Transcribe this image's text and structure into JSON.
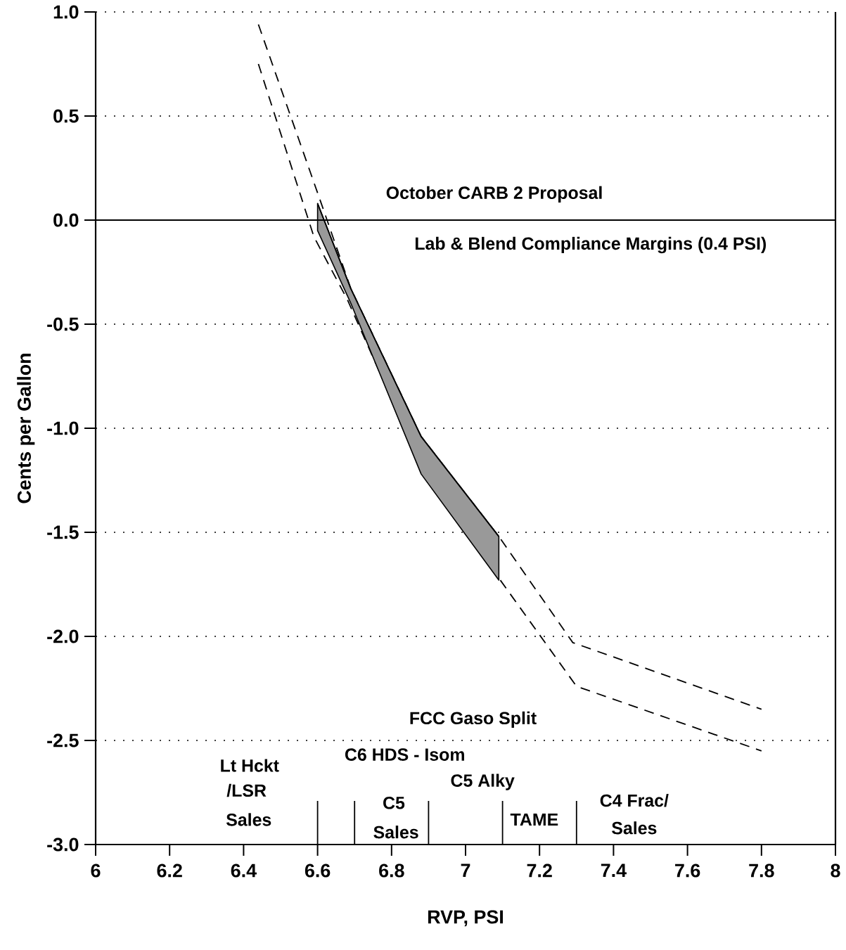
{
  "chart_data": {
    "type": "line",
    "xlabel": "RVP, PSI",
    "ylabel": "Cents per Gallon",
    "xlim": [
      6,
      8
    ],
    "xticks": [
      6,
      6.2,
      6.4,
      6.6,
      6.8,
      7,
      7.2,
      7.4,
      7.6,
      7.8,
      8
    ],
    "ylim": [
      -3,
      1
    ],
    "yticks": [
      {
        "value": 1,
        "label": "1.0"
      },
      {
        "value": 0.5,
        "label": "0.5"
      },
      {
        "value": 0,
        "label": "0.0"
      },
      {
        "value": -0.5,
        "label": "-0.5"
      },
      {
        "value": -1,
        "label": "-1.0"
      },
      {
        "value": -1.5,
        "label": "-1.5"
      },
      {
        "value": -2,
        "label": "-2.0"
      },
      {
        "value": -2.5,
        "label": "-2.5"
      },
      {
        "value": -3,
        "label": "-3.0"
      }
    ],
    "grid": "y",
    "line_style": "dashed",
    "marker": "none",
    "series": [
      {
        "color": "#000000",
        "x": [
          6.44,
          6.61,
          6.69,
          6.88,
          7.09,
          7.29,
          7.8
        ],
        "values": [
          0.94,
          0.08,
          -0.33,
          -1.04,
          -1.52,
          -2.03,
          -2.35
        ]
      },
      {
        "color": "#000000",
        "x": [
          6.44,
          6.59,
          6.68,
          6.89,
          7.09,
          7.3,
          7.8
        ],
        "values": [
          0.75,
          -0.08,
          -0.38,
          -1.22,
          -1.72,
          -2.24,
          -2.55
        ]
      },
      {
        "color": "#000000",
        "line_style": "solid",
        "x": [
          6.6,
          6.69,
          6.88,
          7.09
        ],
        "values": [
          0.08,
          -0.33,
          -1.04,
          -1.52
        ],
        "upper": [
          0.08,
          -0.33,
          -1.04,
          -1.52
        ],
        "lower": [
          -0.05,
          -0.4,
          -1.22,
          -1.73
        ]
      }
    ],
    "ref_lines": [
      {
        "axis": "y",
        "value": 0,
        "line_style": "solid"
      }
    ],
    "annotations": [
      "October CARB 2 Proposal",
      "Lab & Blend Compliance Margins (0.4 PSI)",
      "FCC Gaso Split",
      "Lt Hckt",
      "/LSR",
      "Sales",
      "C6 HDS - Isom",
      "C5 Alky",
      "C5",
      "Sales",
      "TAME",
      "C4 Frac/",
      "Sales"
    ]
  }
}
